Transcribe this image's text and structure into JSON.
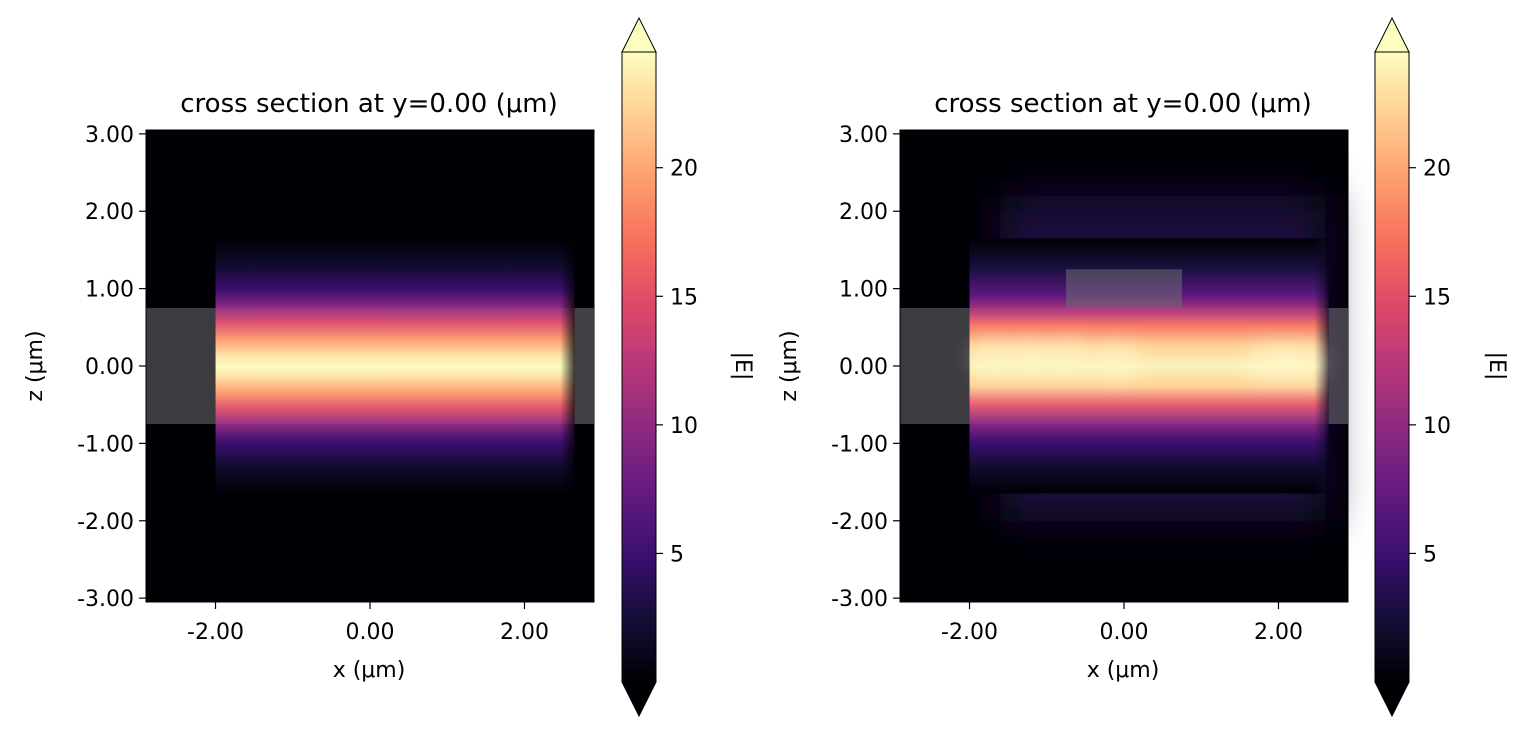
{
  "chart_data": [
    {
      "type": "heatmap",
      "title": "cross section at y=0.00 (μm)",
      "xlabel": "x (μm)",
      "ylabel": "z (μm)",
      "xlim": [
        -2.9,
        2.9
      ],
      "ylim": [
        -3.05,
        3.05
      ],
      "xticks": [
        "-2.00",
        "0.00",
        "2.00"
      ],
      "yticks": [
        "3.00",
        "2.00",
        "1.00",
        "0.00",
        "-1.00",
        "-2.00",
        "-3.00"
      ],
      "colorbar": {
        "label": "|E|",
        "ticks": [
          "5",
          "10",
          "15",
          "20"
        ],
        "range": [
          0,
          24.5
        ],
        "colormap": "magma",
        "extend": "both"
      },
      "structures": [
        {
          "name": "waveguide",
          "x": [
            -2.9,
            2.9
          ],
          "z": [
            -0.75,
            0.75
          ]
        }
      ],
      "field": {
        "x_start": -2.0,
        "x_end": 2.65,
        "core_half_height": 0.75,
        "peak": 24.5
      }
    },
    {
      "type": "heatmap",
      "title": "cross section at y=0.00 (μm)",
      "xlabel": "x (μm)",
      "ylabel": "z (μm)",
      "xlim": [
        -2.9,
        2.9
      ],
      "ylim": [
        -3.05,
        3.05
      ],
      "xticks": [
        "-2.00",
        "0.00",
        "2.00"
      ],
      "yticks": [
        "3.00",
        "2.00",
        "1.00",
        "0.00",
        "-1.00",
        "-2.00",
        "-3.00"
      ],
      "colorbar": {
        "label": "|E|",
        "ticks": [
          "5",
          "10",
          "15",
          "20"
        ],
        "range": [
          0,
          24.5
        ],
        "colormap": "magma",
        "extend": "both"
      },
      "structures": [
        {
          "name": "waveguide",
          "x": [
            -2.9,
            2.9
          ],
          "z": [
            -0.75,
            0.75
          ]
        },
        {
          "name": "ridge",
          "x": [
            -0.75,
            0.75
          ],
          "z": [
            0.75,
            1.25
          ]
        }
      ],
      "field": {
        "x_start": -2.0,
        "x_end": 2.65,
        "core_half_height": 0.75,
        "peak": 24.5
      }
    }
  ]
}
